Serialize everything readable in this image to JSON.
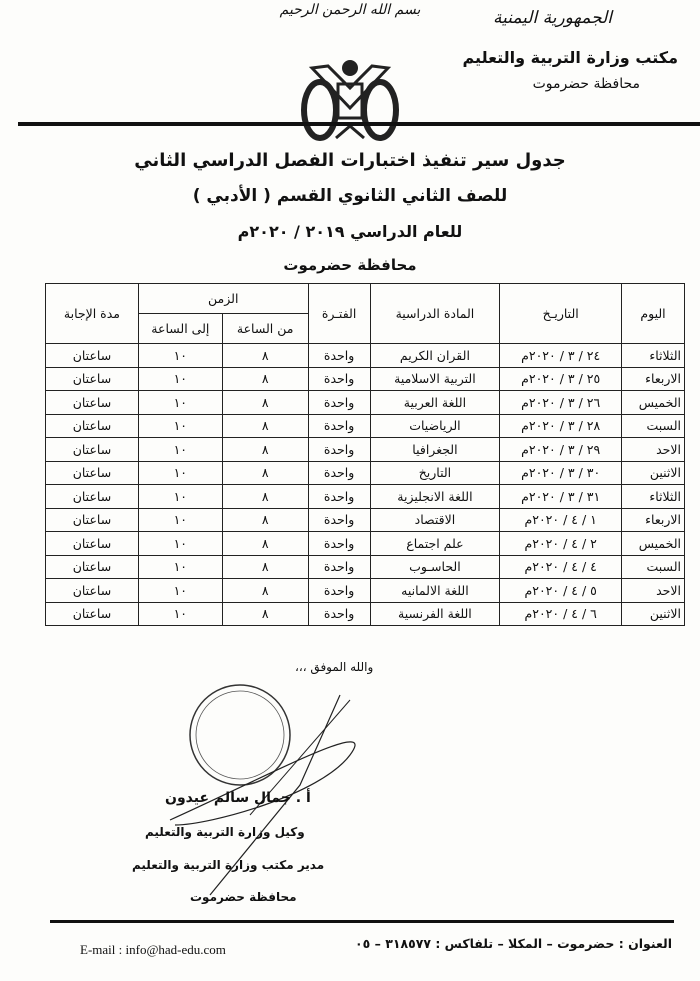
{
  "letterhead": {
    "republic": "الجمهورية اليمنية",
    "office": "مكتب وزارة التربية والتعليم",
    "governorate": "محافظة حضرموت",
    "basmala": "بسم الله الرحمن الرحيم",
    "emblem": "yemen-eagle-emblem"
  },
  "titles": {
    "line1": "جدول سير تنفيذ اختبارات الفصل الدراسي الثاني",
    "line2": "للصف الثاني الثانوي القسم ( الأدبي )",
    "line3": "للعام الدراسي ٢٠١٩ / ٢٠٢٠م",
    "line4": "محافظة حضرموت"
  },
  "table": {
    "headers": {
      "day": "اليوم",
      "date": "التاريـخ",
      "subject": "المادة الدراسية",
      "period": "الفتـرة",
      "time": "الزمن",
      "from": "من الساعة",
      "to": "إلى الساعة",
      "duration": "مدة الإجابة"
    },
    "rows": [
      {
        "day": "الثلاثاء",
        "date": "٢٤ / ٣ / ٢٠٢٠م",
        "subject": "القران الكريم",
        "period": "واحدة",
        "from": "٨",
        "to": "١٠",
        "duration": "ساعتان"
      },
      {
        "day": "الاربعاء",
        "date": "٢٥ / ٣ / ٢٠٢٠م",
        "subject": "التربية الاسلامية",
        "period": "واحدة",
        "from": "٨",
        "to": "١٠",
        "duration": "ساعتان"
      },
      {
        "day": "الخميس",
        "date": "٢٦ / ٣ / ٢٠٢٠م",
        "subject": "اللغة العربية",
        "period": "واحدة",
        "from": "٨",
        "to": "١٠",
        "duration": "ساعتان"
      },
      {
        "day": "السبت",
        "date": "٢٨ / ٣ / ٢٠٢٠م",
        "subject": "الرياضيات",
        "period": "واحدة",
        "from": "٨",
        "to": "١٠",
        "duration": "ساعتان"
      },
      {
        "day": "الاحد",
        "date": "٢٩ / ٣ / ٢٠٢٠م",
        "subject": "الجغرافيا",
        "period": "واحدة",
        "from": "٨",
        "to": "١٠",
        "duration": "ساعتان"
      },
      {
        "day": "الاثنين",
        "date": "٣٠ / ٣ / ٢٠٢٠م",
        "subject": "التاريخ",
        "period": "واحدة",
        "from": "٨",
        "to": "١٠",
        "duration": "ساعتان"
      },
      {
        "day": "الثلاثاء",
        "date": "٣١ / ٣ / ٢٠٢٠م",
        "subject": "اللغة الانجليزية",
        "period": "واحدة",
        "from": "٨",
        "to": "١٠",
        "duration": "ساعتان"
      },
      {
        "day": "الاربعاء",
        "date": "١ / ٤ / ٢٠٢٠م",
        "subject": "الاقتصاد",
        "period": "واحدة",
        "from": "٨",
        "to": "١٠",
        "duration": "ساعتان"
      },
      {
        "day": "الخميس",
        "date": "٢ / ٤ / ٢٠٢٠م",
        "subject": "علم اجتماع",
        "period": "واحدة",
        "from": "٨",
        "to": "١٠",
        "duration": "ساعتان"
      },
      {
        "day": "السبت",
        "date": "٤ / ٤ / ٢٠٢٠م",
        "subject": "الحاسـوب",
        "period": "واحدة",
        "from": "٨",
        "to": "١٠",
        "duration": "ساعتان"
      },
      {
        "day": "الاحد",
        "date": "٥ / ٤ / ٢٠٢٠م",
        "subject": "اللغة الالمانيه",
        "period": "واحدة",
        "from": "٨",
        "to": "١٠",
        "duration": "ساعتان"
      },
      {
        "day": "الاثنين",
        "date": "٦ / ٤ / ٢٠٢٠م",
        "subject": "اللغة الفرنسية",
        "period": "واحدة",
        "from": "٨",
        "to": "١٠",
        "duration": "ساعتان"
      }
    ]
  },
  "closing": "والله الموفق ،،،",
  "signature": {
    "name": "أ . جمال سالم عيدون",
    "title1": "وكيل وزارة التربية والتعليم",
    "title2": "مدير مكتب وزارة التربية والتعليم",
    "title3": "محافظة حضرموت",
    "stamp": "official-round-stamp"
  },
  "footer": {
    "address": "العنوان : حضرموت – المكلا – تلفاكس : ٣١٨٥٧٧ – ٠٥",
    "email_label": "E-mail :",
    "email": "info@had-edu.com"
  }
}
